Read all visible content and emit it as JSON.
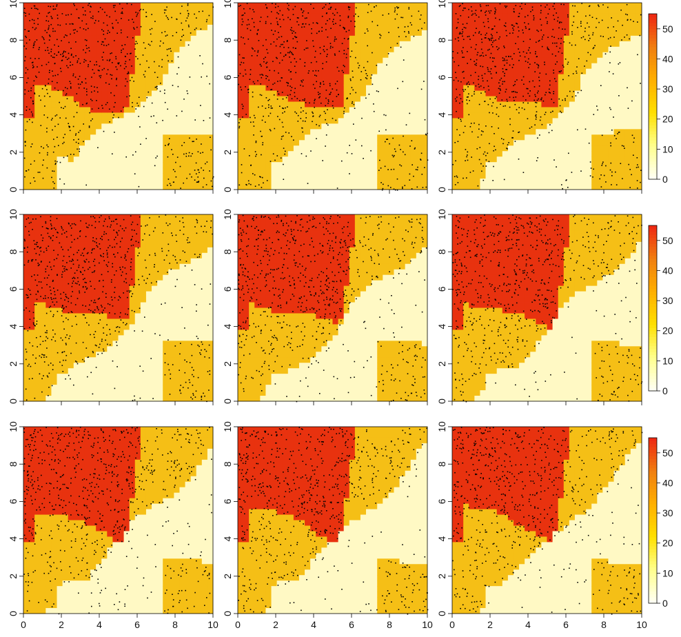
{
  "chart_data": {
    "type": "heatmap",
    "layout": {
      "rows": 3,
      "cols": 3
    },
    "xlim": [
      0,
      10
    ],
    "ylim": [
      0,
      10
    ],
    "x_ticks": [
      "0",
      "2",
      "4",
      "6",
      "8",
      "10"
    ],
    "y_ticks": [
      "0",
      "2",
      "4",
      "6",
      "8",
      "10"
    ],
    "colorbar": {
      "range": [
        0,
        55
      ],
      "tick_values": [
        0,
        10,
        20,
        30,
        40,
        50
      ],
      "tick_labels": [
        "0",
        "10",
        "20",
        "30",
        "40",
        "50"
      ],
      "colors": [
        "#fffff2",
        "#ffff8c",
        "#ffe000",
        "#ffb000",
        "#f08010",
        "#ee2a12"
      ],
      "shown_on_column": 3
    },
    "level_colors": {
      "low": "#fff9c4",
      "mid": "#f5bf16",
      "high": "#e8320f",
      "points": "#000000"
    }
  }
}
